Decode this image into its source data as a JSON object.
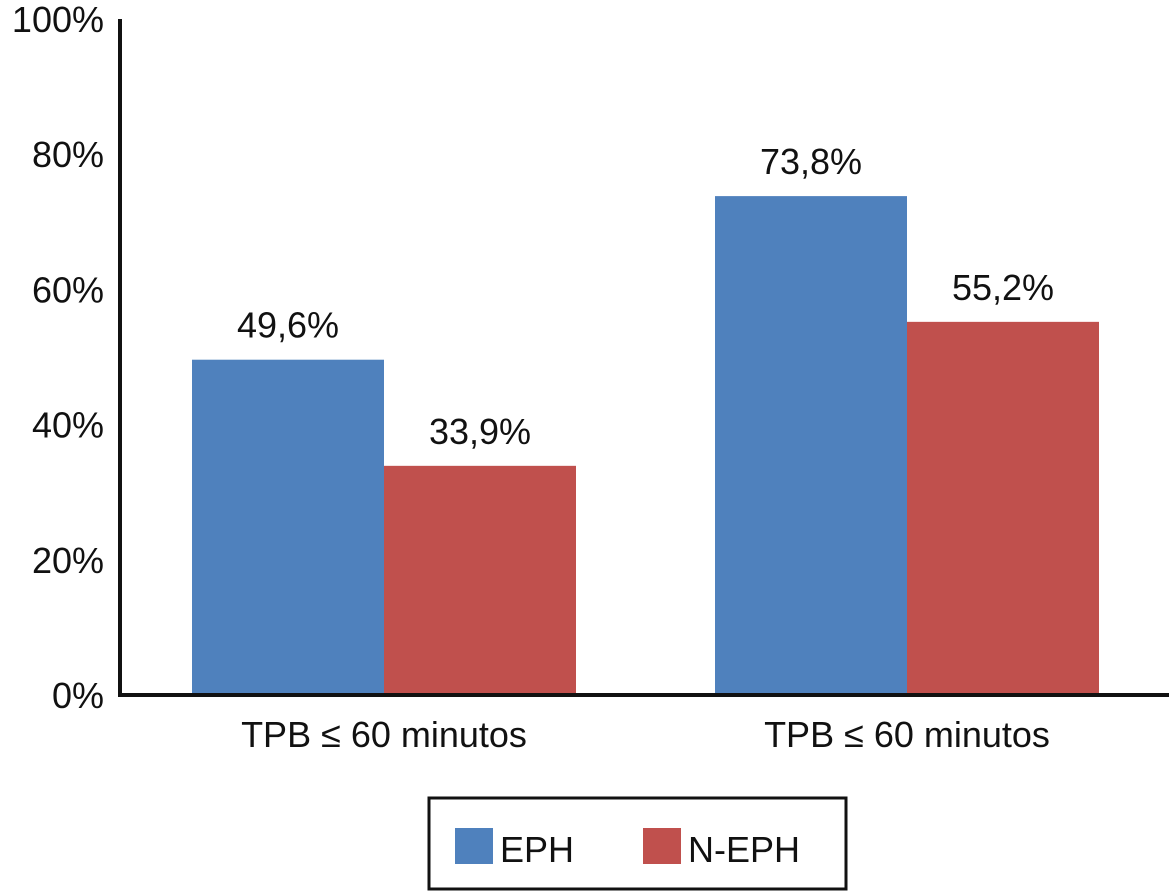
{
  "chart_data": {
    "type": "bar",
    "categories": [
      "TPB ≤ 60 minutos",
      "TPB ≤ 60 minutos"
    ],
    "series": [
      {
        "name": "EPH",
        "values": [
          49.6,
          73.8
        ],
        "labels": [
          "49,6%",
          "73,8%"
        ],
        "color": "#4F81BD"
      },
      {
        "name": "N-EPH",
        "values": [
          33.9,
          55.2
        ],
        "labels": [
          "33,9%",
          "55,2%"
        ],
        "color": "#C0504D"
      }
    ],
    "yticks": [
      "0%",
      "20%",
      "40%",
      "60%",
      "80%",
      "100%"
    ],
    "ylim": [
      0,
      100
    ],
    "xlabel": "",
    "ylabel": "",
    "title": "",
    "grid": false,
    "legend_position": "bottom"
  }
}
